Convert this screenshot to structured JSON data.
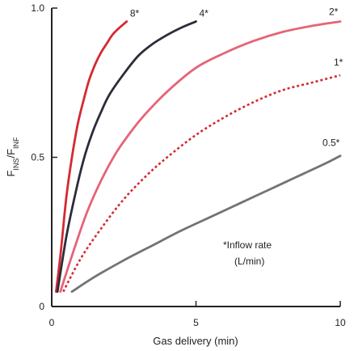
{
  "chart_data": {
    "type": "line",
    "title": "",
    "xlabel": "Gas delivery (min)",
    "ylabel_main": "F",
    "ylabel_sub1": "INS",
    "ylabel_sep": "/F",
    "ylabel_sub2": "INF",
    "xlim": [
      0,
      10
    ],
    "ylim": [
      0,
      1.0
    ],
    "x_ticks": [
      0,
      5,
      10
    ],
    "x_tick_labels": [
      "0",
      "5",
      "10"
    ],
    "y_ticks": [
      0,
      0.5,
      1.0
    ],
    "y_tick_labels": [
      "0",
      "0.5",
      "1.0"
    ],
    "grid": false,
    "series": [
      {
        "name": "8*",
        "color": "#d42a32",
        "dash": "solid",
        "x": [
          0.15,
          0.3,
          0.5,
          0.7,
          0.9,
          1.1,
          1.3,
          1.5,
          1.7,
          1.9,
          2.1,
          2.3,
          2.6
        ],
        "y": [
          0.05,
          0.17,
          0.36,
          0.5,
          0.61,
          0.69,
          0.76,
          0.81,
          0.85,
          0.88,
          0.91,
          0.93,
          0.955
        ]
      },
      {
        "name": "4*",
        "color": "#2a2d3a",
        "dash": "solid",
        "x": [
          0.2,
          0.5,
          0.8,
          1.1,
          1.4,
          1.7,
          2.0,
          2.5,
          3.0,
          3.5,
          4.0,
          4.5,
          5.0
        ],
        "y": [
          0.05,
          0.23,
          0.37,
          0.49,
          0.58,
          0.65,
          0.71,
          0.78,
          0.84,
          0.88,
          0.91,
          0.935,
          0.955
        ]
      },
      {
        "name": "2*",
        "color": "#e56478",
        "dash": "solid",
        "x": [
          0.3,
          0.7,
          1.2,
          1.7,
          2.2,
          2.7,
          3.2,
          4.0,
          5.0,
          6.0,
          7.0,
          8.0,
          9.0,
          10.0
        ],
        "y": [
          0.05,
          0.17,
          0.31,
          0.42,
          0.51,
          0.58,
          0.64,
          0.72,
          0.8,
          0.85,
          0.89,
          0.92,
          0.94,
          0.955
        ]
      },
      {
        "name": "1*",
        "color": "#d42a32",
        "dash": "dotted",
        "x": [
          0.4,
          1.0,
          1.7,
          2.5,
          3.3,
          4.0,
          5.0,
          6.0,
          7.0,
          8.0,
          9.0,
          10.0
        ],
        "y": [
          0.05,
          0.16,
          0.26,
          0.36,
          0.44,
          0.5,
          0.575,
          0.635,
          0.685,
          0.725,
          0.75,
          0.775
        ]
      },
      {
        "name": "0.5*",
        "color": "#707478",
        "dash": "solid",
        "x": [
          0.7,
          1.5,
          2.5,
          3.5,
          4.5,
          5.5,
          6.5,
          7.5,
          8.5,
          9.5,
          10.0
        ],
        "y": [
          0.05,
          0.1,
          0.155,
          0.205,
          0.255,
          0.3,
          0.345,
          0.39,
          0.435,
          0.48,
          0.505
        ]
      }
    ],
    "annotation": {
      "line1": "*Inflow rate",
      "line2": "(L/min)"
    }
  }
}
